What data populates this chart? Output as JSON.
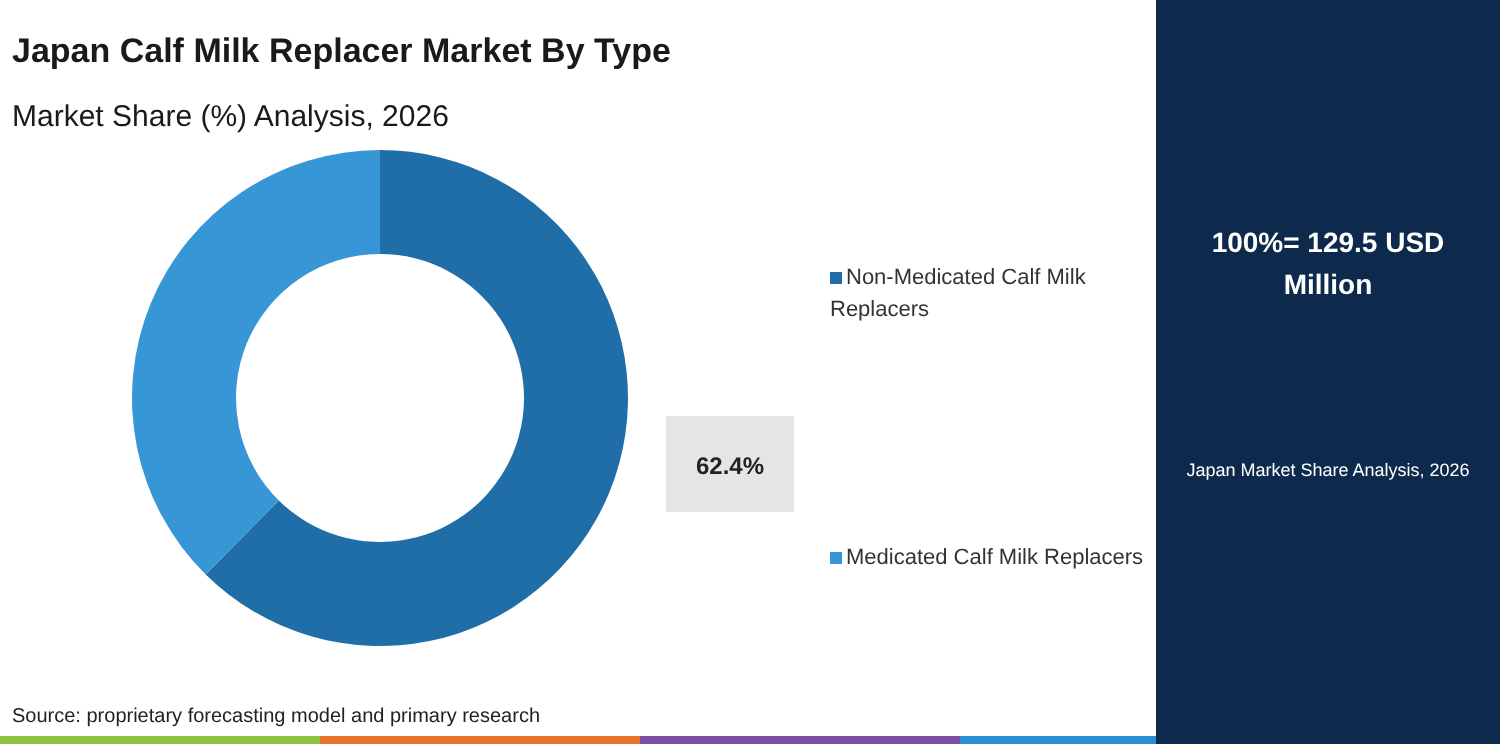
{
  "chart_data": {
    "type": "donut",
    "title": "Japan Calf Milk Replacer Market By Type",
    "subtitle": "Market Share (%) Analysis, 2026",
    "categories": [
      "Non-Medicated Calf Milk Replacers",
      "Medicated Calf Milk Replacers"
    ],
    "values": [
      62.4,
      37.6
    ],
    "colors": [
      "#1f6ea8",
      "#3796d6"
    ],
    "value_labels": [
      "62.4%",
      null
    ],
    "legend": "right",
    "annotations": [
      "100%= 129.5 USD Million",
      "Japan Market Share Analysis, 2026",
      "Source: proprietary forecasting model and primary research"
    ]
  }
}
